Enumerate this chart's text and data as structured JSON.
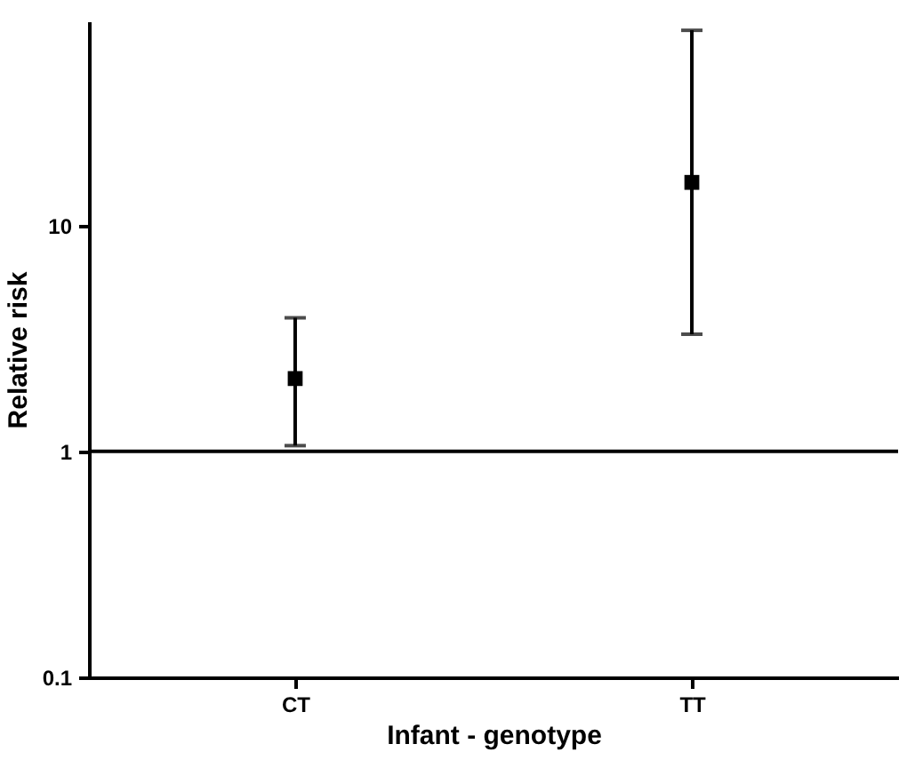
{
  "chart_data": {
    "type": "scatter",
    "xlabel": "Infant - genotype",
    "ylabel": "Relative risk",
    "categories": [
      "CT",
      "TT"
    ],
    "series": [
      {
        "color": "#000000",
        "values": [
          2.1,
          15.5
        ],
        "errors": [
          [
            1.06,
            3.9
          ],
          [
            3.3,
            73
          ]
        ]
      }
    ],
    "log": true,
    "ylim": [
      0.1,
      80
    ],
    "yticks": [
      0.1,
      1,
      10
    ],
    "marker": "square",
    "grid": false,
    "ref_lines": [
      {
        "axis": "y",
        "value": 1,
        "color": "#000000"
      }
    ]
  }
}
